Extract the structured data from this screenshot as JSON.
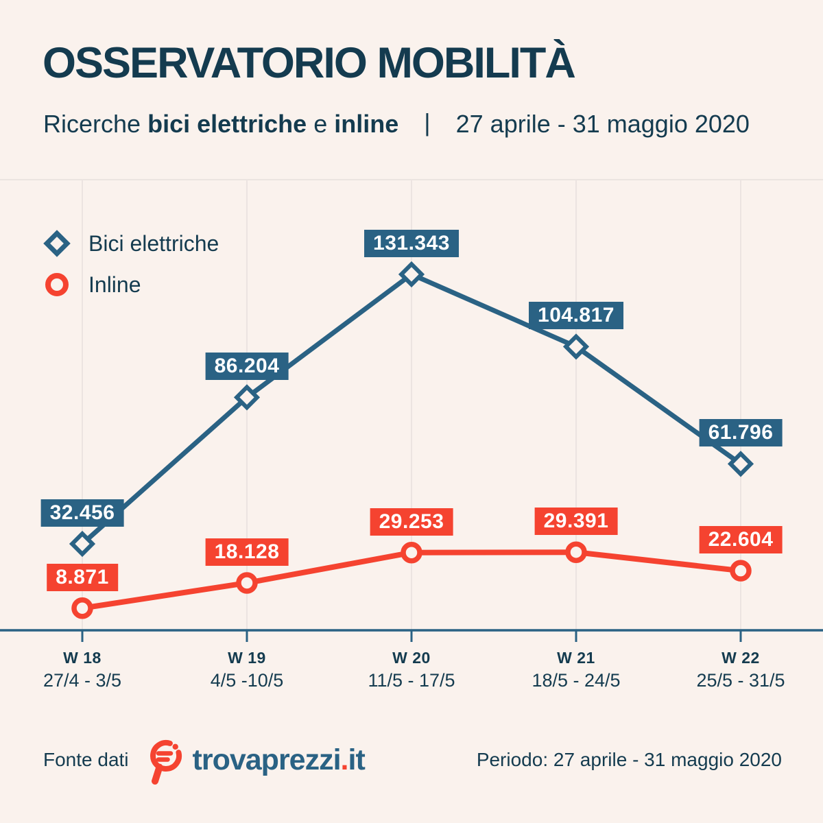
{
  "colors": {
    "background": "#faf2ed",
    "dark_text": "#143b4f",
    "blue": "#2a6284",
    "red": "#f54330",
    "gridline": "#e8e1de",
    "divider": "#ebe4e0",
    "label_text": "#ffffff"
  },
  "header": {
    "title": "OSSERVATORIO MOBILITÀ",
    "subtitle": {
      "prefix": "Ricerche",
      "bold1": "bici elettriche",
      "mid": "e",
      "bold2": "inline",
      "separator": "|",
      "period": "27 aprile - 31 maggio 2020"
    }
  },
  "legend": [
    {
      "label": "Bici elettriche",
      "marker": "diamond-icon",
      "color": "#2a6284"
    },
    {
      "label": "Inline",
      "marker": "circle-icon",
      "color": "#f54330"
    }
  ],
  "chart_data": {
    "type": "line",
    "categories": [
      "W 18",
      "W 19",
      "W 20",
      "W 21",
      "W 22"
    ],
    "category_dates": [
      "27/4 - 3/5",
      "4/5 -10/5",
      "11/5 - 17/5",
      "18/5 - 24/5",
      "25/5 - 31/5"
    ],
    "series": [
      {
        "name": "Bici elettriche",
        "marker": "diamond",
        "color": "#2a6284",
        "values": [
          32456,
          86204,
          131343,
          104817,
          61796
        ],
        "labels": [
          "32.456",
          "86.204",
          "131.343",
          "104.817",
          "61.796"
        ]
      },
      {
        "name": "Inline",
        "marker": "circle",
        "color": "#f54330",
        "values": [
          8871,
          18128,
          29253,
          29391,
          22604
        ],
        "labels": [
          "8.871",
          "18.128",
          "29.253",
          "29.391",
          "22.604"
        ]
      }
    ],
    "ylim": [
      0,
      165000
    ],
    "xlabel": "",
    "ylabel": "",
    "grid": "vertical",
    "legend_position": "top-left"
  },
  "footer": {
    "source_label": "Fonte dati",
    "brand": {
      "name": "trovaprezzi",
      "dot": ".",
      "tld": "it",
      "logo": "magnifier-icon"
    },
    "period_note": "Periodo: 27 aprile - 31 maggio 2020"
  }
}
